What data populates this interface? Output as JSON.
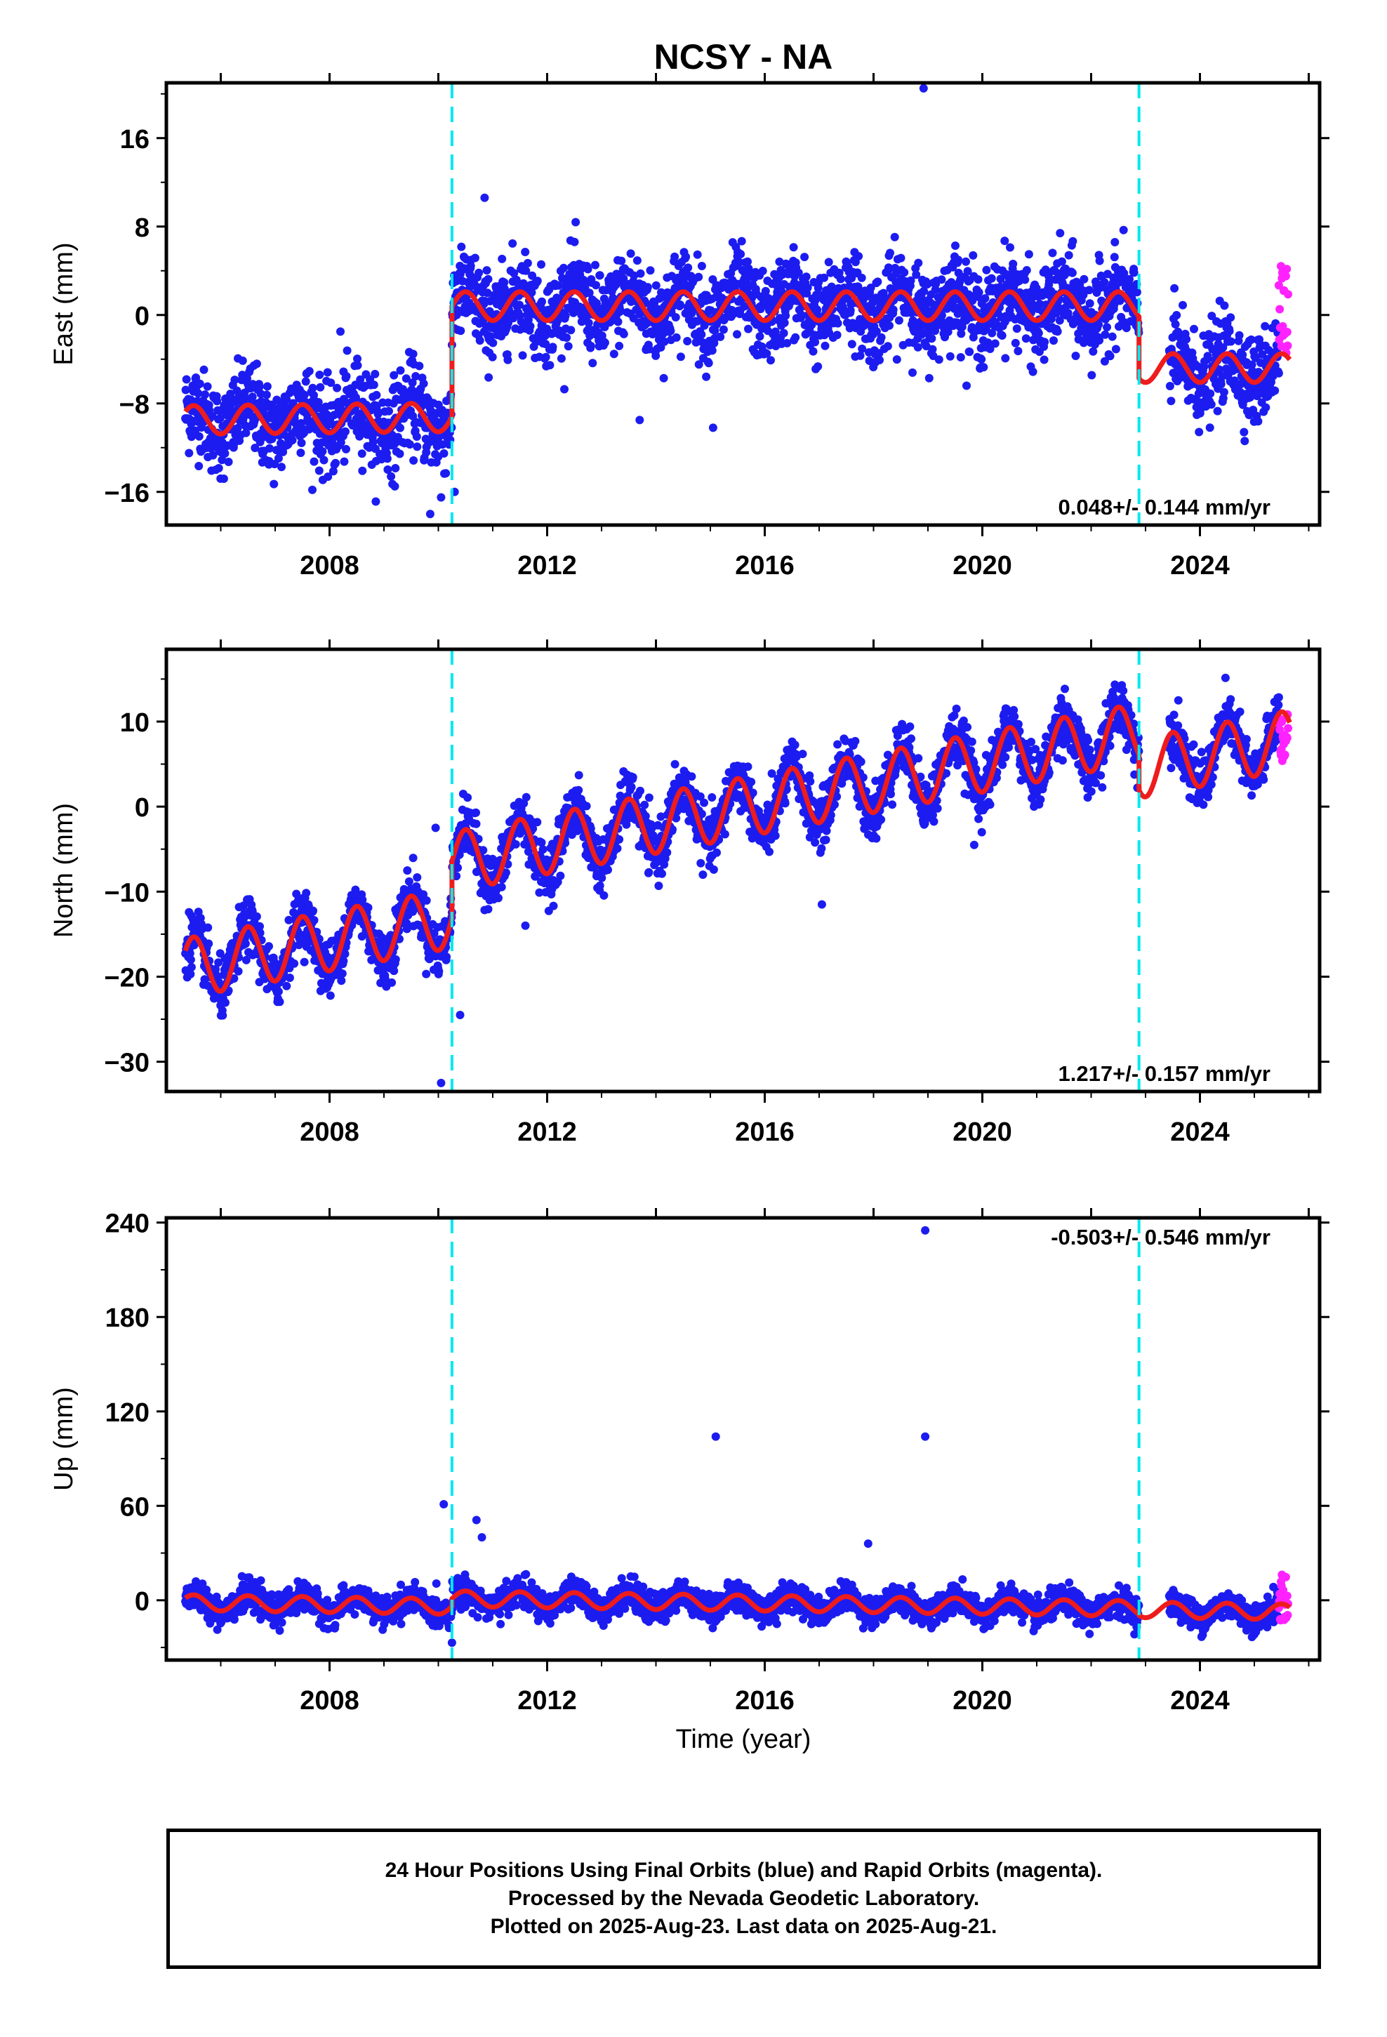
{
  "title": "NCSY - NA",
  "chart_data": [
    {
      "type": "scatter",
      "name": "east",
      "ylabel": "East (mm)",
      "xlabel": "",
      "xlim": [
        2005.0,
        2026.2
      ],
      "ylim": [
        -19,
        21
      ],
      "yticks": [
        -16,
        -8,
        0,
        8,
        16
      ],
      "ytick_labels": [
        "−16",
        "−8",
        "0",
        "8",
        "16"
      ],
      "xticks": [
        2008,
        2012,
        2016,
        2020,
        2024
      ],
      "xtick_labels": [
        "2008",
        "2012",
        "2016",
        "2020",
        "2024"
      ],
      "rate_text": "0.048+/- 0.144 mm/yr",
      "rate_position": "bottom-right",
      "steps": [
        2010.25,
        2022.88
      ],
      "model": {
        "segments": [
          {
            "start": 2005.35,
            "end": 2010.25,
            "offset": -9.5,
            "trend": 0.05,
            "amplitude": 1.3
          },
          {
            "start": 2010.25,
            "end": 2022.88,
            "offset": 0.8,
            "trend": 0.0,
            "amplitude": 1.3
          },
          {
            "start": 2022.88,
            "end": 2025.65,
            "offset": -4.8,
            "trend": 0.0,
            "amplitude": 1.3
          }
        ],
        "early_offset": -3.5
      },
      "noise": 2.0,
      "outliers": [
        [
          2018.92,
          20.5
        ],
        [
          2010.85,
          10.6
        ],
        [
          2009.85,
          -18.0
        ],
        [
          2010.05,
          -16.5
        ],
        [
          2010.3,
          -16.0
        ],
        [
          2015.05,
          -10.2
        ],
        [
          2013.7,
          -9.5
        ],
        [
          2009.2,
          -15.5
        ],
        [
          2008.2,
          -1.5
        ]
      ],
      "rapid": {
        "start": 2025.45,
        "end": 2025.62,
        "min": -4.0,
        "max": 4.5
      }
    },
    {
      "type": "scatter",
      "name": "north",
      "ylabel": "North (mm)",
      "xlabel": "",
      "xlim": [
        2005.0,
        2026.2
      ],
      "ylim": [
        -33.5,
        18.5
      ],
      "yticks": [
        -30,
        -20,
        -10,
        0,
        10
      ],
      "ytick_labels": [
        "−30",
        "−20",
        "−10",
        "0",
        "10"
      ],
      "xticks": [
        2008,
        2012,
        2016,
        2020,
        2024
      ],
      "xtick_labels": [
        "2008",
        "2012",
        "2016",
        "2020",
        "2024"
      ],
      "rate_text": "1.217+/- 0.157 mm/yr",
      "rate_position": "bottom-right",
      "steps": [
        2010.25,
        2022.88
      ],
      "model": {
        "segments": [
          {
            "start": 2005.35,
            "end": 2010.25,
            "offset": -19.0,
            "trend": 1.2,
            "amplitude": 3.5
          },
          {
            "start": 2010.25,
            "end": 2022.88,
            "offset": -6.5,
            "trend": 1.2,
            "amplitude": 3.5
          },
          {
            "start": 2022.88,
            "end": 2025.65,
            "offset": 4.5,
            "trend": 1.2,
            "amplitude": 3.5
          }
        ],
        "early_offset": -9.0
      },
      "noise": 1.6,
      "outliers": [
        [
          2010.05,
          -32.5
        ],
        [
          2009.95,
          -2.5
        ],
        [
          2010.4,
          -24.5
        ],
        [
          2017.05,
          -11.5
        ],
        [
          2019.85,
          -4.5
        ],
        [
          2011.6,
          -14.0
        ]
      ],
      "rapid": {
        "start": 2025.45,
        "end": 2025.62,
        "min": 4.5,
        "max": 11.0
      }
    },
    {
      "type": "scatter",
      "name": "up",
      "ylabel": "Up (mm)",
      "xlabel": "Time (year)",
      "xlim": [
        2005.0,
        2026.2
      ],
      "ylim": [
        -38,
        243
      ],
      "yticks": [
        0,
        60,
        120,
        180,
        240
      ],
      "ytick_labels": [
        "0",
        "60",
        "120",
        "180",
        "240"
      ],
      "xticks": [
        2008,
        2012,
        2016,
        2020,
        2024
      ],
      "xtick_labels": [
        "2008",
        "2012",
        "2016",
        "2020",
        "2024"
      ],
      "rate_text": "-0.503+/- 0.546 mm/yr",
      "rate_position": "top-right",
      "steps": [
        2010.25,
        2022.88
      ],
      "model": {
        "segments": [
          {
            "start": 2005.35,
            "end": 2010.25,
            "offset": -1.5,
            "trend": -0.5,
            "amplitude": 5.0
          },
          {
            "start": 2010.25,
            "end": 2022.88,
            "offset": 1.0,
            "trend": -0.5,
            "amplitude": 5.0
          },
          {
            "start": 2022.88,
            "end": 2025.65,
            "offset": -6.0,
            "trend": -0.5,
            "amplitude": 5.0
          }
        ],
        "early_offset": 0
      },
      "noise": 4.5,
      "outliers": [
        [
          2018.95,
          235
        ],
        [
          2015.1,
          104
        ],
        [
          2018.95,
          104
        ],
        [
          2010.1,
          61
        ],
        [
          2010.7,
          51
        ],
        [
          2010.8,
          40
        ],
        [
          2017.9,
          36
        ],
        [
          2010.25,
          -27
        ]
      ],
      "rapid": {
        "start": 2025.45,
        "end": 2025.62,
        "min": -18.0,
        "max": 18.0
      }
    }
  ],
  "footer": {
    "line1": "24 Hour Positions Using Final Orbits (blue) and Rapid Orbits (magenta).",
    "line2": "Processed by the Nevada Geodetic Laboratory.",
    "line3": "Plotted on 2025-Aug-23. Last data on 2025-Aug-21."
  },
  "colors": {
    "final_orbits": "#1c1cf0",
    "rapid_orbits": "#ff22ff",
    "model": "#ee1c1c",
    "step_line": "#00e8f0",
    "frame": "#000000"
  }
}
